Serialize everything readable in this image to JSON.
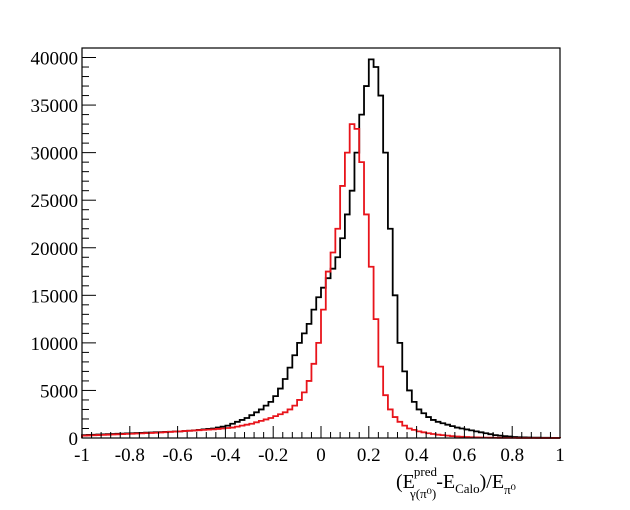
{
  "chart_data": {
    "type": "histogram",
    "title": "",
    "xlabel": {
      "open": "(E",
      "sup": "pred",
      "sub": "γ(π⁰)",
      "mid": "-E",
      "sub2": "Calo",
      "close": ")/E",
      "sub3": "π⁰"
    },
    "ylabel": "",
    "xlim": [
      -1,
      1
    ],
    "ylim": [
      0,
      41000
    ],
    "xticks": [
      -1,
      -0.8,
      -0.6,
      -0.4,
      -0.2,
      0,
      0.2,
      0.4,
      0.6,
      0.8,
      1
    ],
    "xtick_labels": [
      "-1",
      "-0.8",
      "-0.6",
      "-0.4",
      "-0.2",
      "0",
      "0.2",
      "0.4",
      "0.6",
      "0.8",
      "1"
    ],
    "yticks": [
      0,
      5000,
      10000,
      15000,
      20000,
      25000,
      30000,
      35000,
      40000
    ],
    "ytick_labels": [
      "0",
      "5000",
      "10000",
      "15000",
      "20000",
      "25000",
      "30000",
      "35000",
      "40000"
    ],
    "grid": false,
    "bin_edges_range": [
      -1,
      1
    ],
    "bin_width": 0.02,
    "series": [
      {
        "color": "#000000",
        "values": [
          300,
          320,
          340,
          360,
          380,
          400,
          420,
          440,
          460,
          480,
          500,
          520,
          540,
          560,
          580,
          600,
          620,
          640,
          660,
          680,
          700,
          730,
          760,
          800,
          850,
          900,
          950,
          1000,
          1100,
          1200,
          1300,
          1500,
          1700,
          1900,
          2100,
          2400,
          2700,
          3000,
          3400,
          3800,
          4400,
          5200,
          6200,
          7400,
          8700,
          10000,
          11000,
          12000,
          13500,
          14800,
          15800,
          16800,
          17800,
          19000,
          21000,
          23500,
          26000,
          30000,
          34000,
          37000,
          39800,
          39000,
          36000,
          30000,
          22000,
          15000,
          10000,
          7000,
          5000,
          3800,
          3000,
          2600,
          2200,
          1900,
          1700,
          1550,
          1400,
          1250,
          1100,
          1000,
          900,
          800,
          700,
          600,
          500,
          400,
          300,
          250,
          200,
          150,
          100,
          80,
          60,
          50,
          40,
          30,
          20,
          20,
          10,
          10
        ]
      },
      {
        "color": "#e8141b",
        "values": [
          250,
          270,
          290,
          310,
          330,
          350,
          370,
          390,
          410,
          430,
          450,
          470,
          490,
          510,
          530,
          550,
          580,
          610,
          640,
          670,
          700,
          730,
          760,
          790,
          820,
          850,
          880,
          910,
          950,
          1000,
          1050,
          1100,
          1200,
          1300,
          1400,
          1500,
          1650,
          1800,
          1950,
          2100,
          2300,
          2500,
          2700,
          3000,
          3400,
          4000,
          4800,
          6000,
          7800,
          10000,
          13500,
          17500,
          19500,
          22000,
          26500,
          30000,
          33000,
          32500,
          29000,
          23500,
          18000,
          12500,
          7500,
          4500,
          3000,
          2200,
          1700,
          1300,
          1000,
          850,
          700,
          600,
          500,
          420,
          350,
          300,
          250,
          200,
          160,
          130,
          100,
          80,
          60,
          50,
          40,
          30,
          25,
          20,
          15,
          10,
          10,
          5,
          5,
          5,
          5,
          5,
          5,
          5,
          5,
          5
        ]
      }
    ]
  }
}
